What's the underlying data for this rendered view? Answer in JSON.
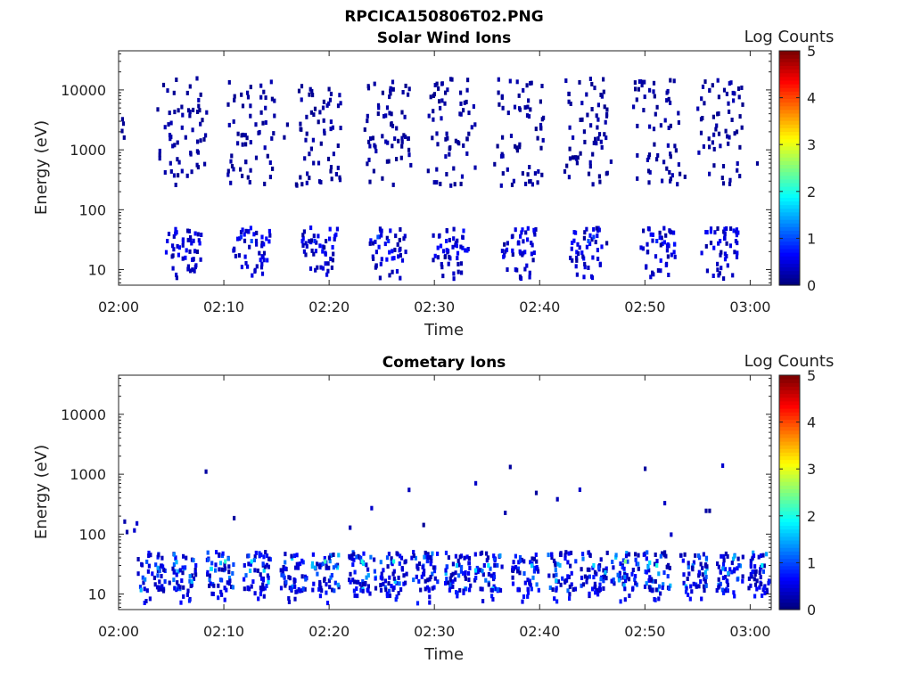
{
  "figure_title": "RPCICA150806T02.PNG",
  "chart_data": [
    {
      "type": "heatmap",
      "title": "Solar Wind Ions",
      "xlabel": "Time",
      "ylabel": "Energy (eV)",
      "x_scale": "time",
      "xlim": [
        "02:00",
        "03:02"
      ],
      "x_ticks": [
        "02:00",
        "02:10",
        "02:20",
        "02:30",
        "02:40",
        "02:50",
        "03:00"
      ],
      "y_scale": "log",
      "ylim": [
        5.5,
        45000
      ],
      "y_ticks": [
        10,
        100,
        1000,
        10000
      ],
      "y_tick_labels": [
        "10",
        "100",
        "1000",
        "10000"
      ],
      "colorbar": {
        "label": "Log Counts",
        "range": [
          0,
          5
        ],
        "ticks": [
          "0",
          "1",
          "2",
          "3",
          "4",
          "5"
        ],
        "colormap": "jet"
      },
      "scan_centers_min": [
        6.0,
        12.5,
        19.0,
        25.5,
        31.5,
        38.0,
        44.5,
        51.0,
        57.0
      ],
      "pixels": [
        [
          "02:04:30",
          30,
          0.5
        ],
        [
          "02:05:00",
          25,
          0.4
        ],
        [
          "02:06:00",
          30,
          0.5
        ],
        [
          "02:07:00",
          15,
          0.3
        ],
        [
          "02:11:30",
          35,
          0.8
        ],
        [
          "02:12:30",
          30,
          1.0
        ],
        [
          "02:13:30",
          35,
          0.6
        ],
        [
          "02:18:30",
          30,
          0.8
        ],
        [
          "02:19:00",
          25,
          0.6
        ],
        [
          "02:24:30",
          35,
          1.0
        ],
        [
          "02:25:30",
          30,
          0.8
        ],
        [
          "02:31:00",
          30,
          0.7
        ],
        [
          "02:32:00",
          25,
          0.6
        ],
        [
          "02:38:00",
          20,
          0.5
        ],
        [
          "02:44:30",
          30,
          1.0
        ],
        [
          "02:45:00",
          35,
          0.9
        ],
        [
          "02:51:00",
          30,
          0.8
        ],
        [
          "02:52:00",
          25,
          0.5
        ],
        [
          "02:57:00",
          30,
          0.6
        ],
        [
          "02:58:00",
          25,
          0.5
        ]
      ]
    },
    {
      "type": "heatmap",
      "title": "Cometary Ions",
      "xlabel": "Time",
      "ylabel": "Energy (eV)",
      "x_scale": "time",
      "xlim": [
        "02:00",
        "03:02"
      ],
      "x_ticks": [
        "02:00",
        "02:10",
        "02:20",
        "02:30",
        "02:40",
        "02:50",
        "03:00"
      ],
      "y_scale": "log",
      "ylim": [
        5.5,
        45000
      ],
      "y_ticks": [
        10,
        100,
        1000,
        10000
      ],
      "y_tick_labels": [
        "10",
        "100",
        "1000",
        "10000"
      ],
      "colorbar": {
        "label": "Log Counts",
        "range": [
          0,
          5
        ],
        "ticks": [
          "0",
          "1",
          "2",
          "3",
          "4",
          "5"
        ],
        "colormap": "jet"
      },
      "scan_centers_min": [
        3.0,
        6.0,
        9.5,
        13.0,
        16.5,
        19.5,
        23.0,
        26.0,
        29.0,
        32.0,
        35.0,
        38.5,
        42.0,
        45.0,
        48.0,
        51.0,
        54.5,
        58.0,
        61.0
      ],
      "pixels": [
        [
          "02:10:00",
          35,
          2.1
        ],
        [
          "02:12:30",
          35,
          1.8
        ],
        [
          "02:19:30",
          35,
          2.2
        ],
        [
          "02:23:00",
          35,
          2.0
        ],
        [
          "02:26:00",
          35,
          2.0
        ],
        [
          "02:32:00",
          30,
          1.6
        ],
        [
          "02:35:00",
          30,
          1.8
        ],
        [
          "02:45:00",
          30,
          1.7
        ],
        [
          "02:48:00",
          35,
          2.5
        ],
        [
          "02:51:00",
          30,
          2.0
        ],
        [
          "03:01:00",
          30,
          1.8
        ]
      ]
    }
  ]
}
